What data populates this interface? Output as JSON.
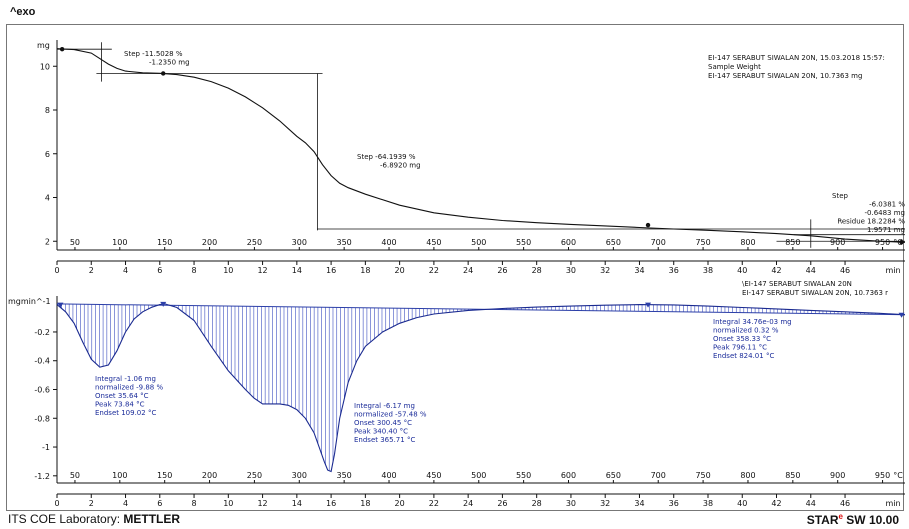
{
  "header": {
    "exo_label": "^exo"
  },
  "footer": {
    "lab": "ITS COE Laboratory: ",
    "brand": "METTLER",
    "star": "STAR",
    "star_sup": "e",
    "sw": " SW 10.00"
  },
  "chart_data": [
    {
      "type": "line",
      "ylabel": "mg",
      "ylim": [
        1.6,
        11.2
      ],
      "yticks": [
        2,
        4,
        6,
        8,
        10
      ],
      "temp_axis": {
        "ticks": [
          50,
          100,
          150,
          200,
          250,
          300,
          350,
          400,
          450,
          500,
          550,
          600,
          650,
          700,
          750,
          800,
          850,
          900,
          950
        ],
        "unit": "°C"
      },
      "time_axis": {
        "ticks": [
          0,
          2,
          4,
          6,
          8,
          10,
          12,
          14,
          16,
          18,
          20,
          22,
          24,
          26,
          28,
          30,
          32,
          34,
          36,
          38,
          40,
          42,
          44,
          46
        ],
        "unit": "min",
        "max": 49.5
      },
      "series": [
        {
          "x": [
            0,
            1,
            2,
            2.5,
            3,
            3.5,
            4,
            5,
            6,
            7,
            8,
            9,
            10,
            11,
            12,
            13,
            14,
            14.5,
            15,
            15.5,
            16,
            16.5,
            17,
            18,
            20,
            22,
            24,
            26,
            28,
            30,
            32,
            34,
            36,
            38,
            40,
            42,
            44,
            46,
            48,
            49.5
          ],
          "y": [
            10.8,
            10.76,
            10.6,
            10.35,
            10.1,
            9.9,
            9.78,
            9.7,
            9.68,
            9.62,
            9.5,
            9.3,
            9.0,
            8.6,
            8.1,
            7.5,
            6.8,
            6.5,
            6.1,
            5.5,
            5.0,
            4.65,
            4.45,
            4.15,
            3.65,
            3.3,
            3.1,
            2.95,
            2.85,
            2.77,
            2.7,
            2.63,
            2.56,
            2.5,
            2.43,
            2.35,
            2.25,
            2.1,
            2.0,
            1.95
          ]
        }
      ],
      "markers": [
        {
          "x": 0.3,
          "y": 10.78
        },
        {
          "x": 6.2,
          "y": 9.67
        },
        {
          "x": 34.5,
          "y": 2.74
        },
        {
          "x": 49.3,
          "y": 1.96
        }
      ],
      "annotations": [
        {
          "lines": [
            "Step  -11.5028 %",
            "-1.2350 mg"
          ]
        },
        {
          "lines": [
            "Step  -64.1939 %",
            "-6.8920 mg"
          ]
        },
        {
          "lines": [
            "Step",
            "-6.0381 %",
            "-0.6483 mg",
            "Residue  18.2284 %",
            "1.9571 mg"
          ]
        }
      ],
      "legend": [
        "EI-147 SERABUT SIWALAN 20N, 15.03.2018 15:57:",
        "Sample Weight",
        "EI-147 SERABUT SIWALAN 20N, 10.7363 mg"
      ]
    },
    {
      "type": "area",
      "ylabel": "mgmin^-1",
      "ylim": [
        -1.25,
        0.05
      ],
      "yticks": [
        -0.2,
        -0.4,
        -0.6,
        -0.8,
        -1.0,
        -1.2
      ],
      "temp_axis": {
        "ticks": [
          50,
          100,
          150,
          200,
          250,
          300,
          350,
          400,
          450,
          500,
          550,
          600,
          650,
          700,
          750,
          800,
          850,
          900,
          950
        ],
        "unit": "°C"
      },
      "time_axis": {
        "ticks": [
          0,
          2,
          4,
          6,
          8,
          10,
          12,
          14,
          16,
          18,
          20,
          22,
          24,
          26,
          28,
          30,
          32,
          34,
          36,
          38,
          40,
          42,
          44,
          46
        ],
        "unit": "min",
        "max": 49.5
      },
      "series": [
        {
          "x": [
            0,
            0.5,
            1,
            1.5,
            2,
            2.5,
            3,
            3.5,
            4,
            4.5,
            5,
            5.5,
            6,
            6.3,
            7,
            8,
            9,
            10,
            11,
            11.5,
            12,
            12.5,
            13,
            13.5,
            14,
            14.5,
            15,
            15.3,
            15.6,
            15.8,
            16,
            16.2,
            16.5,
            17,
            17.5,
            18,
            19,
            20,
            21,
            22,
            24,
            26,
            28,
            30,
            32,
            34,
            36,
            38,
            40,
            42,
            44,
            46,
            48,
            49.5
          ],
          "y": [
            -0.01,
            -0.06,
            -0.14,
            -0.27,
            -0.39,
            -0.445,
            -0.43,
            -0.33,
            -0.2,
            -0.11,
            -0.06,
            -0.03,
            -0.01,
            -0.005,
            -0.03,
            -0.12,
            -0.3,
            -0.47,
            -0.6,
            -0.66,
            -0.7,
            -0.7,
            -0.7,
            -0.71,
            -0.74,
            -0.8,
            -0.9,
            -1.0,
            -1.1,
            -1.16,
            -1.17,
            -1.05,
            -0.8,
            -0.55,
            -0.4,
            -0.3,
            -0.2,
            -0.14,
            -0.1,
            -0.075,
            -0.05,
            -0.037,
            -0.027,
            -0.02,
            -0.014,
            -0.01,
            -0.012,
            -0.02,
            -0.03,
            -0.04,
            -0.05,
            -0.06,
            -0.07,
            -0.08
          ]
        }
      ],
      "markers": [
        {
          "x": 0.2,
          "y": -0.01
        },
        {
          "x": 6.2,
          "y": -0.005
        },
        {
          "x": 34.5,
          "y": -0.01
        },
        {
          "x": 49.3,
          "y": -0.08
        }
      ],
      "annotations": [
        {
          "lines": [
            "Integral      -1.06 mg",
            "   normalized   -9.88 %",
            "Onset          35.64 °C",
            "Peak           73.84 °C",
            "Endset         109.02 °C"
          ]
        },
        {
          "lines": [
            "Integral      -6.17 mg",
            "   normalized  -57.48 %",
            "Onset          300.45 °C",
            "Peak           340.40 °C",
            "Endset         365.71 °C"
          ]
        },
        {
          "lines": [
            "Integral       34.76e-03 mg",
            "   normalized   0.32 %",
            "Onset          358.33 °C",
            "Peak           796.11 °C",
            "Endset         824.01 °C"
          ]
        }
      ],
      "legend": [
        "\\EI-147 SERABUT SIWALAN 20N",
        "EI-147 SERABUT SIWALAN 20N, 10.7363 r"
      ]
    }
  ]
}
